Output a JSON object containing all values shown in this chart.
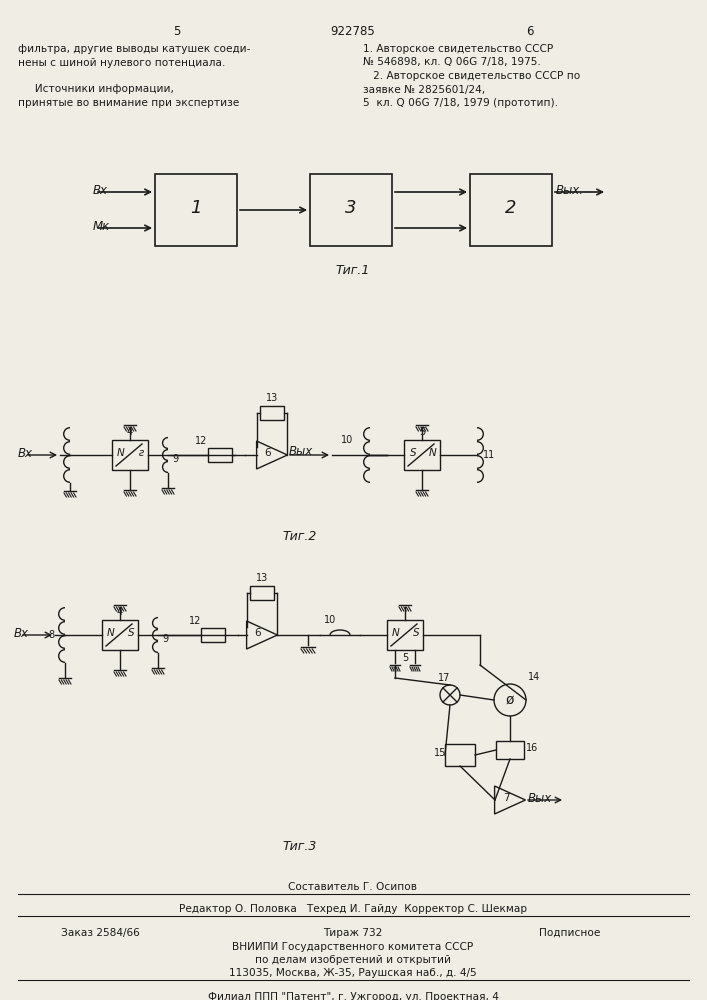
{
  "bg_color": "#f0ede4",
  "text_color": "#1a1a1a",
  "header_left_line1": "фильтра, другие выводы катушек соеди-",
  "header_left_line2": "нены с шиной нулевого потенциала.",
  "header_left_line3": "",
  "header_left_line4": "     Источники информации,",
  "header_left_line5": "принятые во внимание при экспертизе",
  "header_right_line1": "1. Авторское свидетельство СССР",
  "header_right_line2": "№ 546898, кл. Q 06G 7/18, 1975.",
  "header_right_line3": "   2. Авторское свидетельство СССР по",
  "header_right_line4": "заявке № 2825601/24,",
  "header_right_line5": "5  кл. Q 06G 7/18, 1979 (прототип).",
  "page_num_left": "5",
  "page_num_center": "922785",
  "page_num_right": "6",
  "fig1_caption": "Τиг.1",
  "fig2_caption": "Τиг.2",
  "fig3_caption": "Τиг.3",
  "footer_composer": "Составитель Г. Осипов",
  "footer_editors": "Редактор О. Половка   Техред И. Гайду  Корректор С. Шекмар",
  "footer_order": "Заказ 2584/66",
  "footer_tirazh": "Тираж 732",
  "footer_podp": "Подписное",
  "footer_vniip1": "ВНИИПИ Государственного комитета СССР",
  "footer_vniip2": "по делам изобретений и открытий",
  "footer_addr": "113035, Москва, Ж-35, Раушская наб., д. 4/5",
  "footer_filial": "Филиал ППП \"Патент\", г. Ужгород, ул. Проектная, 4"
}
